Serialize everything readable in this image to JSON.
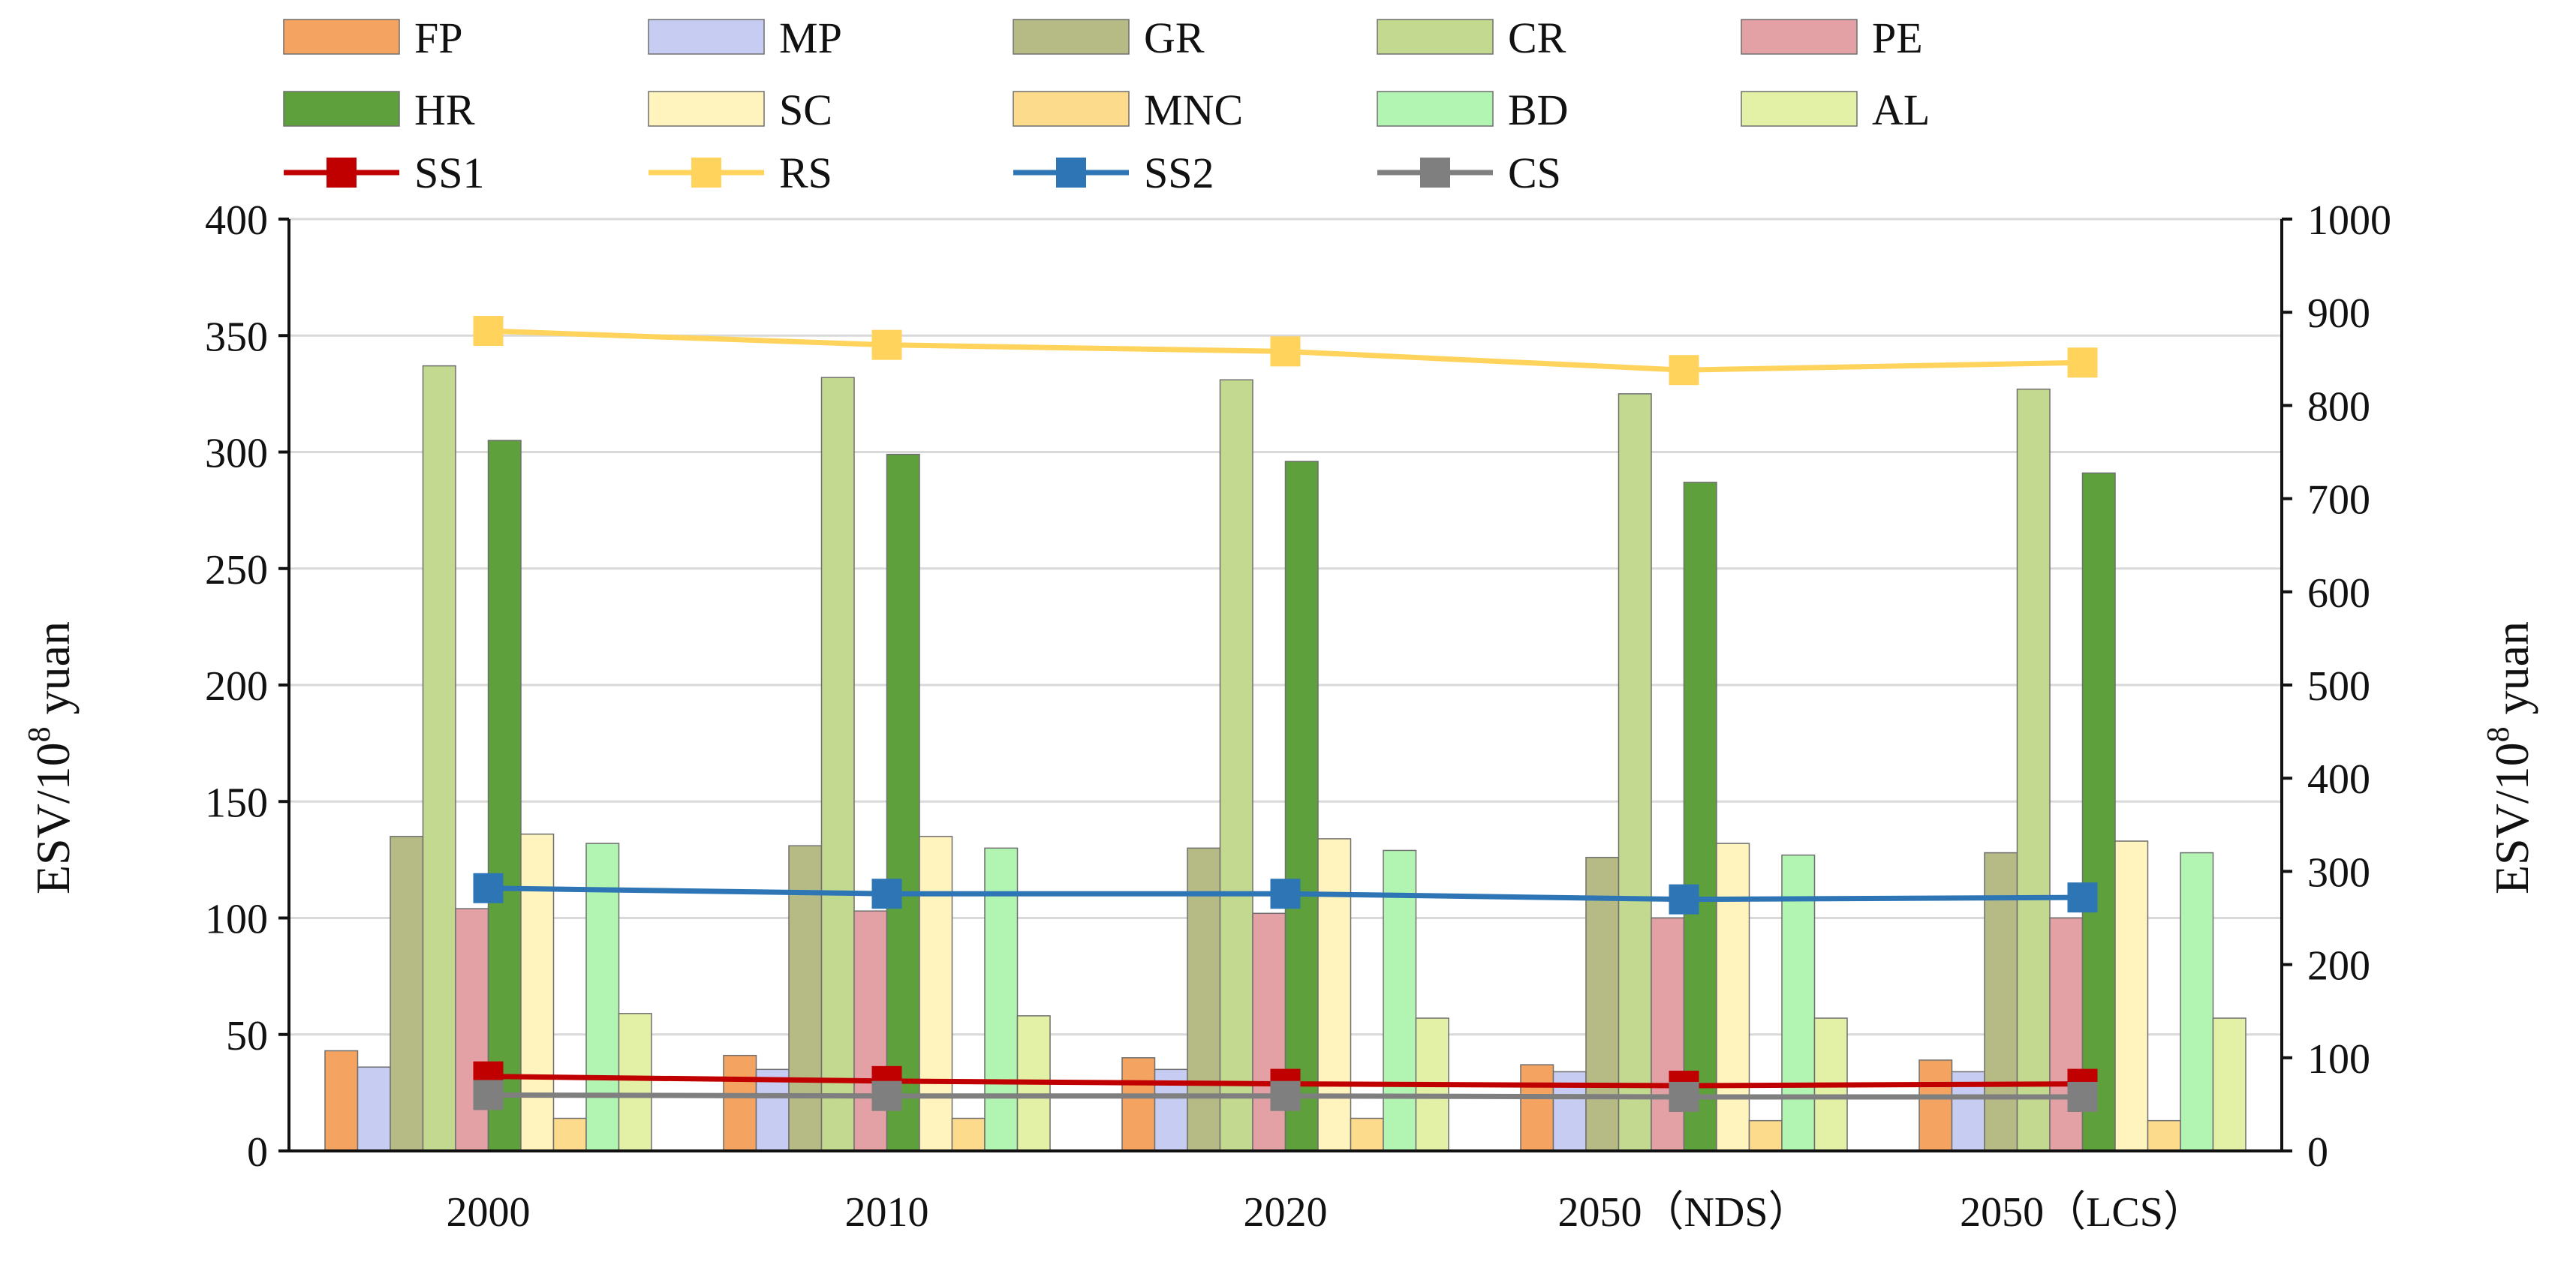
{
  "chart_data": {
    "type": "bar+line",
    "categories": [
      "2000",
      "2010",
      "2020",
      "2050（NDS）",
      "2050（LCS）"
    ],
    "left_axis": {
      "label_main": "ESV/10",
      "label_sup": "8",
      "label_unit": " yuan",
      "ylim": [
        0,
        400
      ],
      "ticks": [
        0,
        50,
        100,
        150,
        200,
        250,
        300,
        350,
        400
      ]
    },
    "right_axis": {
      "label_main": "ESV/10",
      "label_sup": "8",
      "label_unit": " yuan",
      "ylim": [
        0,
        1000
      ],
      "ticks": [
        0,
        100,
        200,
        300,
        400,
        500,
        600,
        700,
        800,
        900,
        1000
      ]
    },
    "bar_series": [
      {
        "name": "FP",
        "color": "#F4A460",
        "values": [
          43,
          41,
          40,
          37,
          39
        ]
      },
      {
        "name": "MP",
        "color": "#C7CCF2",
        "values": [
          36,
          35,
          35,
          34,
          34
        ]
      },
      {
        "name": "GR",
        "color": "#B6BB86",
        "values": [
          135,
          131,
          130,
          126,
          128
        ]
      },
      {
        "name": "CR",
        "color": "#C3D990",
        "values": [
          337,
          332,
          331,
          325,
          327
        ]
      },
      {
        "name": "PE",
        "color": "#E3A1A6",
        "values": [
          104,
          103,
          102,
          100,
          100
        ]
      },
      {
        "name": "HR",
        "color": "#5EA13C",
        "values": [
          305,
          299,
          296,
          287,
          291
        ]
      },
      {
        "name": "SC",
        "color": "#FFF3BE",
        "values": [
          136,
          135,
          134,
          132,
          133
        ]
      },
      {
        "name": "MNC",
        "color": "#FDDB8C",
        "values": [
          14,
          14,
          14,
          13,
          13
        ]
      },
      {
        "name": "BD",
        "color": "#B2F5B2",
        "values": [
          132,
          130,
          129,
          127,
          128
        ]
      },
      {
        "name": "AL",
        "color": "#E3F1A6",
        "values": [
          59,
          58,
          57,
          57,
          57
        ]
      }
    ],
    "line_series": [
      {
        "name": "SS1",
        "color": "#C00000",
        "axis": "right",
        "values": [
          80,
          75,
          72,
          70,
          72
        ]
      },
      {
        "name": "RS",
        "color": "#FFD35C",
        "axis": "right",
        "values": [
          880,
          865,
          858,
          838,
          846
        ]
      },
      {
        "name": "SS2",
        "color": "#2E75B6",
        "axis": "right",
        "values": [
          282,
          276,
          276,
          270,
          272
        ]
      },
      {
        "name": "CS",
        "color": "#7F7F7F",
        "axis": "right",
        "values": [
          60,
          59,
          59,
          58,
          58
        ]
      }
    ],
    "legend_placement": "top",
    "grid": true
  }
}
